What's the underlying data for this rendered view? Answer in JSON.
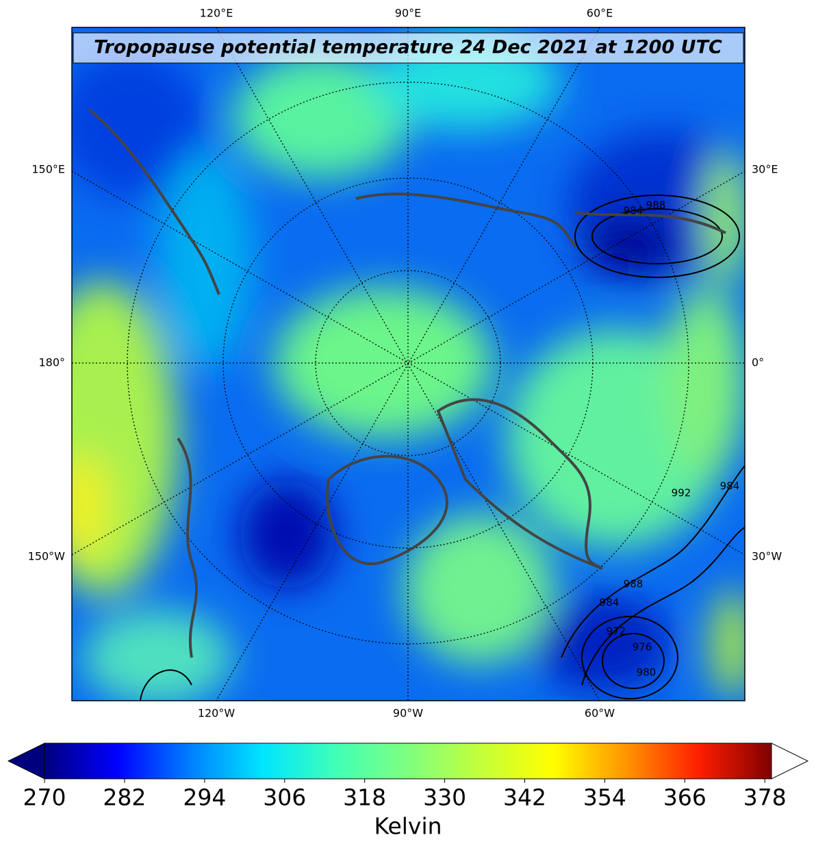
{
  "title": "Tropopause potential temperature 24 Dec 2021 at 1200 UTC",
  "longitude_labels": {
    "top": [
      "120°E",
      "90°E",
      "60°E"
    ],
    "bottom": [
      "120°W",
      "90°W",
      "60°W"
    ],
    "left": [
      "150°E",
      "180°",
      "150°W"
    ],
    "right": [
      "30°E",
      "0°",
      "30°W"
    ]
  },
  "isobar_labels": [
    "988",
    "984",
    "992",
    "984",
    "988",
    "984",
    "972",
    "976",
    "980"
  ],
  "colorbar": {
    "label": "Kelvin",
    "range": [
      270,
      379
    ],
    "ticks": [
      270,
      282,
      294,
      306,
      318,
      330,
      342,
      354,
      366,
      378
    ],
    "colormap": [
      "#00007f",
      "#0000ff",
      "#007fff",
      "#00e5ff",
      "#40ffb7",
      "#7fff7f",
      "#c4ff3a",
      "#ffff00",
      "#ff9400",
      "#ff1e00",
      "#7f0000"
    ],
    "under_color": "#00007f",
    "over_color": "#ffffff"
  }
}
